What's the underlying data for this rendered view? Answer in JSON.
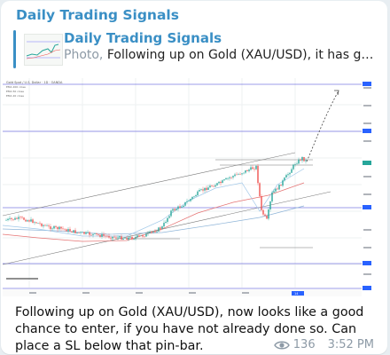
{
  "channel": {
    "name": "Daily Trading Signals"
  },
  "reply": {
    "title": "Daily Trading Signals",
    "kind": "Photo, ",
    "text": "Following up on Gold (XAU/USD), it has gone up as..."
  },
  "chart": {
    "header_line1": "Gold Spot / U.S. Dollar · 1D · OANDA",
    "header_line2": "EMA 200 close",
    "header_line3": "EMA 50 close",
    "header_line4": "EMA 20 close",
    "marker_label": "14"
  },
  "message": {
    "text": "Following up on Gold (XAU/USD), now looks like a good chance to enter, if you have not already done so. Can place a SL below that pin-bar.",
    "views": "136",
    "time": "3:52 PM"
  },
  "colors": {
    "accent": "#3a8fc5",
    "bull": "#26a69a",
    "bear": "#ef5350"
  }
}
